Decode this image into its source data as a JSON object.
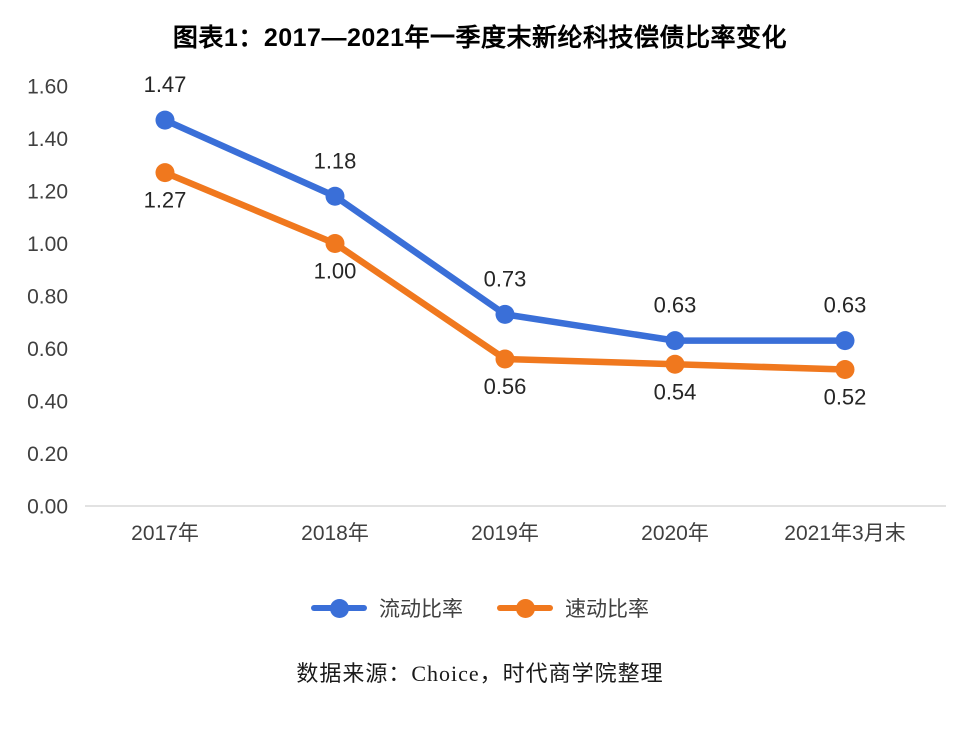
{
  "title": "图表1：2017—2021年一季度末新纶科技偿债比率变化",
  "source": "数据来源：Choice，时代商学院整理",
  "chart_data": {
    "type": "line",
    "title": "图表1：2017—2021年一季度末新纶科技偿债比率变化",
    "categories": [
      "2017年",
      "2018年",
      "2019年",
      "2020年",
      "2021年3月末"
    ],
    "series": [
      {
        "name": "流动比率",
        "color": "#3A6FD8",
        "values": [
          1.47,
          1.18,
          0.73,
          0.63,
          0.63
        ],
        "label_position": "above"
      },
      {
        "name": "速动比率",
        "color": "#F0781E",
        "values": [
          1.27,
          1.0,
          0.56,
          0.54,
          0.52
        ],
        "label_position": "below"
      }
    ],
    "xlabel": "",
    "ylabel": "",
    "ylim": [
      0.0,
      1.6
    ],
    "ytick_step": 0.2,
    "ytick_format": "0.00",
    "grid": false,
    "legend_position": "bottom",
    "axis_line_color": "#D9D9D9"
  }
}
